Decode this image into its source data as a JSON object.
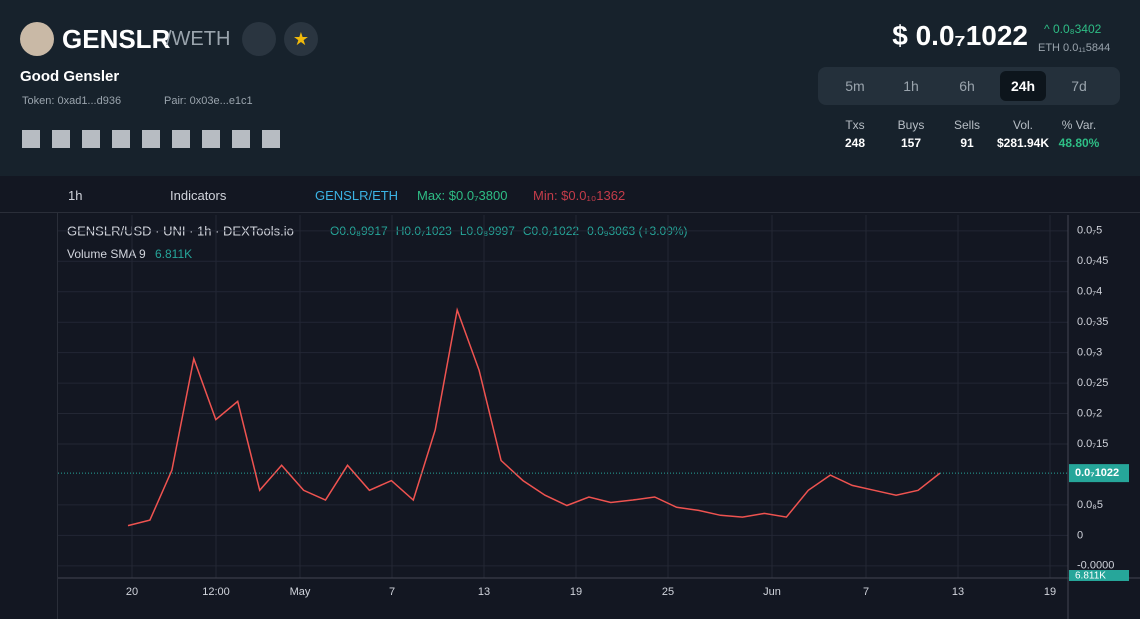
{
  "header": {
    "symbol": "GENSLR",
    "quote": "/WETH",
    "name": "Good Gensler",
    "token": "Token: 0xad1...d936",
    "pair_address": "Pair: 0x03e...e1c1",
    "price": "$ 0.0₇1022",
    "change": "0.0₈3402",
    "eth_price": "ETH 0.0₁₁5844"
  },
  "timeframes": [
    "5m",
    "1h",
    "6h",
    "24h",
    "7d"
  ],
  "stats": [
    {
      "label": "Txs",
      "value": 248
    },
    {
      "label": "Buys",
      "value": 157
    },
    {
      "label": "Sells",
      "value": 91
    },
    {
      "label": "Vol.",
      "value": "$281.94K"
    },
    {
      "label": "% Var.",
      "value": "48.80%"
    }
  ],
  "toolbar": {
    "interval": "1h",
    "indicators": "Indicators",
    "pair": "GENSLR/ETH",
    "max": "Max: $0.0₇3800",
    "min": "Min: $0.0₁₀1362"
  },
  "chart_data": {
    "type": "line",
    "title": "GENSLR/USD · UNI · 1h · DEXTools.io",
    "ohlc": [
      "O0.0₈9917",
      "H0.0₇1023",
      "L0.0₈9997",
      "C0.0₇1022",
      "0.0₉3063 (+3.09%)"
    ],
    "volume_label": "Volume SMA 9",
    "volume_value": "6.811K",
    "last_price_label": "0.0₇1022",
    "last_price": 1.022e-08,
    "xtick_labels": [
      "20",
      "12:00",
      "May",
      "7",
      "13",
      "19",
      "25",
      "Jun",
      "7",
      "13",
      "19"
    ],
    "series": [
      {
        "name": "GENSLR/USD",
        "color": "#ef5350",
        "values": [
          1.6e-09,
          2.5e-09,
          1.07e-08,
          2.9e-08,
          1.9e-08,
          2.2e-08,
          7.4e-09,
          1.15e-08,
          7.4e-09,
          5.8e-09,
          1.15e-08,
          7.4e-09,
          9e-09,
          5.8e-09,
          1.73e-08,
          3.7e-08,
          2.71e-08,
          1.23e-08,
          9e-09,
          6.6e-09,
          4.9e-09,
          6.3e-09,
          5.4e-09,
          5.8e-09,
          6.3e-09,
          4.6e-09,
          4.1e-09,
          3.3e-09,
          3e-09,
          3.6e-09,
          3e-09,
          7.4e-09,
          9.9e-09,
          8.2e-09,
          7.4e-09,
          6.6e-09,
          7.4e-09,
          1.022e-08
        ]
      }
    ],
    "ylim": [
      -7e-09,
      5.26e-08
    ],
    "yticks": [
      {
        "value": 5e-08,
        "label": "0.0₇5"
      },
      {
        "value": 4.5e-08,
        "label": "0.0₇45"
      },
      {
        "value": 4e-08,
        "label": "0.0₇4"
      },
      {
        "value": 3.5e-08,
        "label": "0.0₇35"
      },
      {
        "value": 3e-08,
        "label": "0.0₇3"
      },
      {
        "value": 2.5e-08,
        "label": "0.0₇25"
      },
      {
        "value": 2e-08,
        "label": "0.0₇2"
      },
      {
        "value": 1.5e-08,
        "label": "0.0₇15"
      },
      {
        "value": 5e-09,
        "label": "0.0₈5"
      },
      0,
      {
        "value": -5e-09,
        "label": "-0.0000"
      }
    ],
    "grid": true
  }
}
